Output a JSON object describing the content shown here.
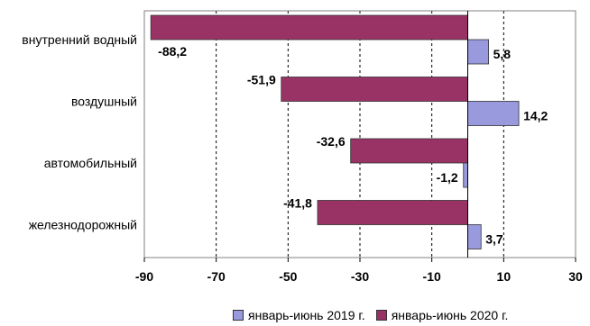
{
  "chart_data": {
    "type": "bar",
    "orientation": "horizontal",
    "categories": [
      "внутренний водный",
      "воздушный",
      "автомобильный",
      "железнодорожный"
    ],
    "series": [
      {
        "name": "январь-июнь 2019 г.",
        "values": [
          5.8,
          14.2,
          -1.2,
          3.7
        ],
        "labels": [
          "5,8",
          "14,2",
          "-1,2",
          "3,7"
        ],
        "color": "#9999dd"
      },
      {
        "name": "январь-июнь 2020 г.",
        "values": [
          -88.2,
          -51.9,
          -32.6,
          -41.8
        ],
        "labels": [
          "-88,2",
          "-51,9",
          "-32,6",
          "-41,8"
        ],
        "color": "#993366"
      }
    ],
    "xlim": [
      -90,
      30
    ],
    "xticks": [
      -90,
      -70,
      -50,
      -30,
      -10,
      10,
      30
    ],
    "xtick_labels": [
      "-90",
      "-70",
      "-50",
      "-30",
      "-10",
      "10",
      "30"
    ],
    "grid": "vertical dashed",
    "legend_position": "bottom"
  }
}
